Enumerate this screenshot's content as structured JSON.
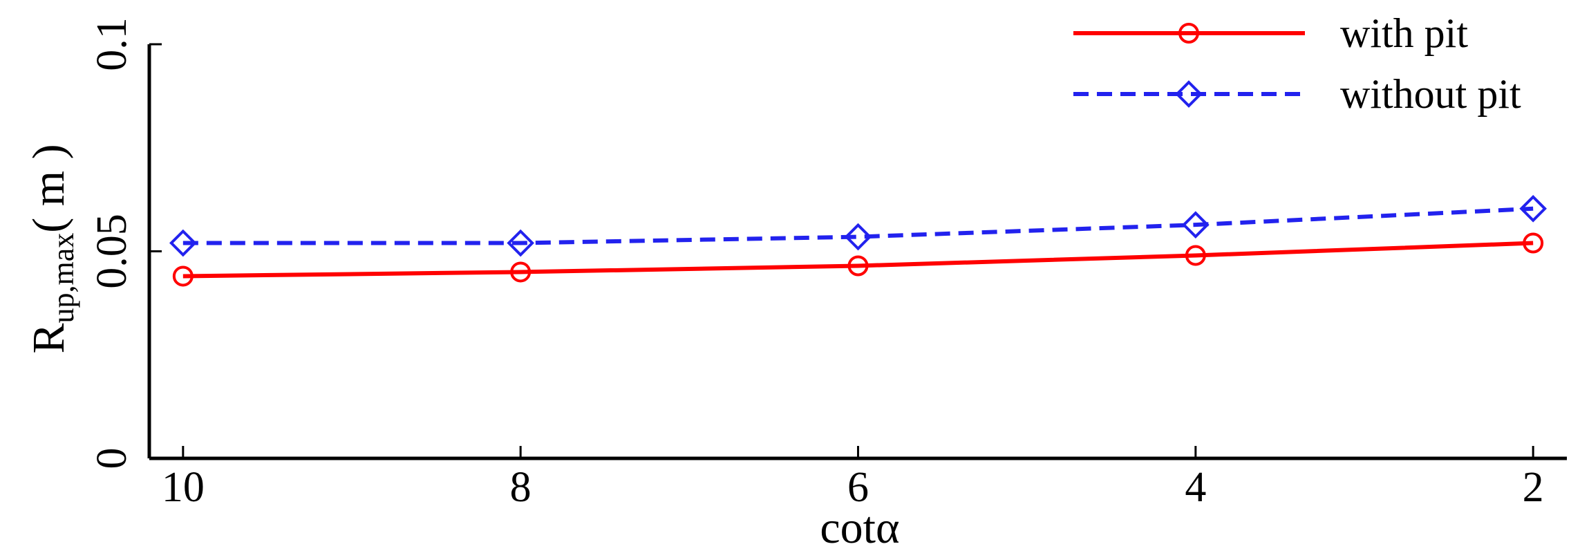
{
  "chart_data": {
    "type": "line",
    "x": [
      10,
      8,
      6,
      4,
      2
    ],
    "series": [
      {
        "name": "with pit",
        "color": "#ff0000",
        "linestyle": "solid",
        "marker": "circle",
        "values": [
          0.044,
          0.045,
          0.0465,
          0.049,
          0.052
        ]
      },
      {
        "name": "without pit",
        "color": "#2222ee",
        "linestyle": "dashed",
        "marker": "diamond",
        "values": [
          0.052,
          0.052,
          0.0535,
          0.0564,
          0.0603
        ]
      }
    ],
    "xlabel": "cotα",
    "ylabel": "R",
    "ylabel_sub": "up,max",
    "ylabel_unit": "( m )",
    "xlim": [
      10.2,
      1.8
    ],
    "xticks": [
      10,
      8,
      6,
      4,
      2
    ],
    "ylim": [
      0,
      0.1
    ],
    "yticks": [
      0,
      0.05,
      0.1
    ],
    "legend": "upper right"
  }
}
